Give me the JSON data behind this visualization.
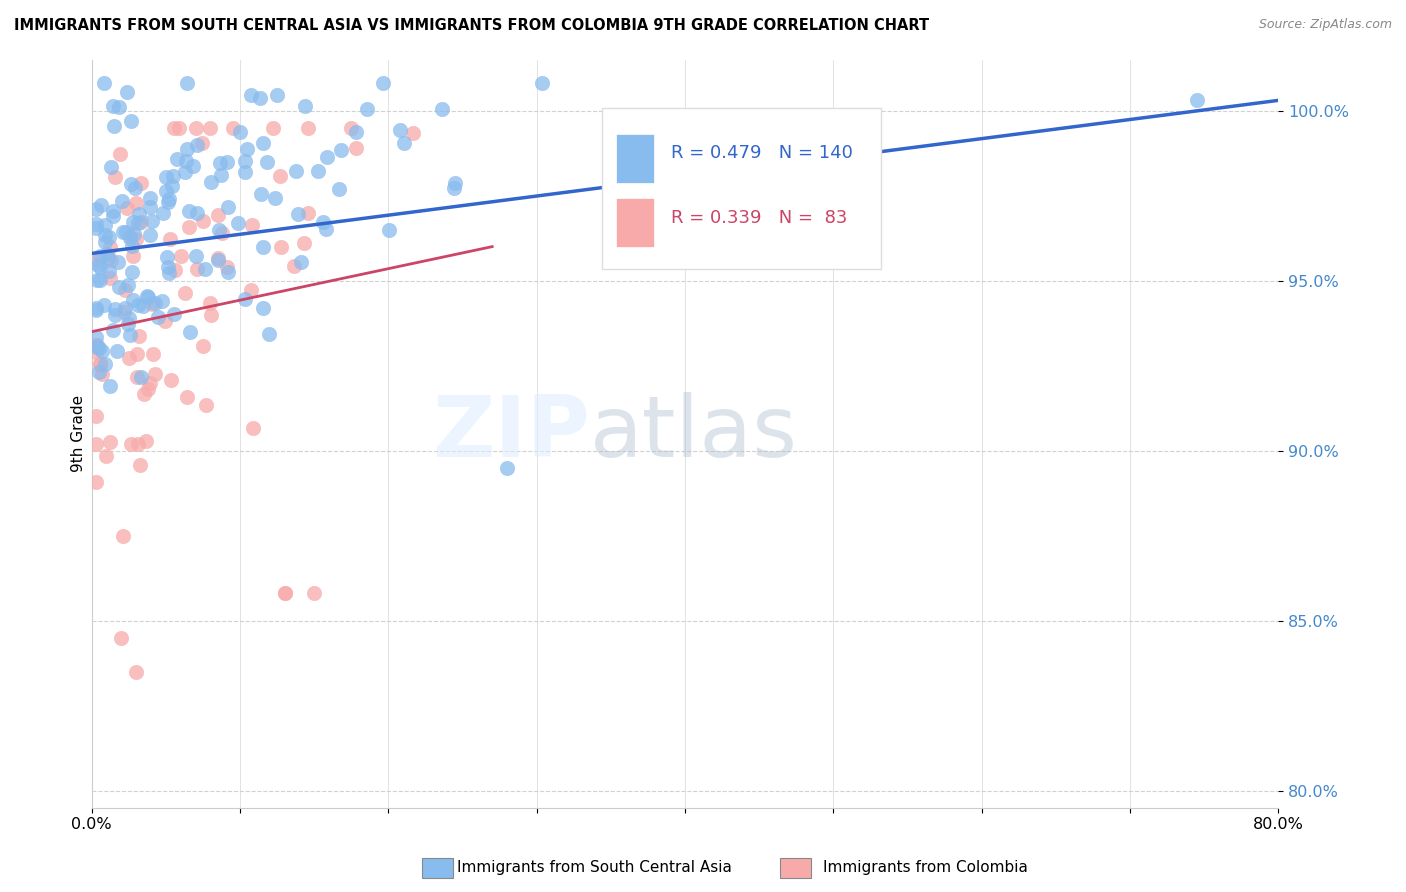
{
  "title": "IMMIGRANTS FROM SOUTH CENTRAL ASIA VS IMMIGRANTS FROM COLOMBIA 9TH GRADE CORRELATION CHART",
  "source": "Source: ZipAtlas.com",
  "ylabel": "9th Grade",
  "x_range": [
    0.0,
    0.8
  ],
  "y_range": [
    0.795,
    1.015
  ],
  "blue_R": 0.479,
  "blue_N": 140,
  "pink_R": 0.339,
  "pink_N": 83,
  "blue_color": "#88bbee",
  "pink_color": "#f8aaaa",
  "trend_blue": "#3366cc",
  "trend_pink": "#cc4466",
  "tick_color": "#4488cc",
  "legend_label_blue": "Immigrants from South Central Asia",
  "legend_label_pink": "Immigrants from Colombia",
  "watermark_zip": "ZIP",
  "watermark_atlas": "atlas",
  "seed": 42
}
